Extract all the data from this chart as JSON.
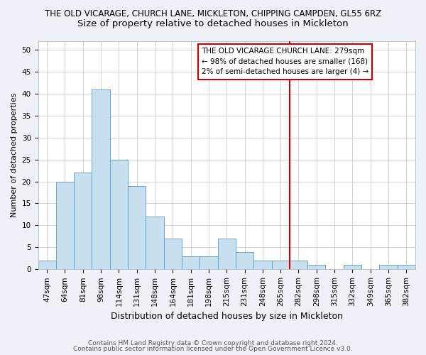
{
  "title": "THE OLD VICARAGE, CHURCH LANE, MICKLETON, CHIPPING CAMPDEN, GL55 6RZ",
  "subtitle": "Size of property relative to detached houses in Mickleton",
  "xlabel": "Distribution of detached houses by size in Mickleton",
  "ylabel": "Number of detached properties",
  "categories": [
    "47sqm",
    "64sqm",
    "81sqm",
    "98sqm",
    "114sqm",
    "131sqm",
    "148sqm",
    "164sqm",
    "181sqm",
    "198sqm",
    "215sqm",
    "231sqm",
    "248sqm",
    "265sqm",
    "282sqm",
    "298sqm",
    "315sqm",
    "332sqm",
    "349sqm",
    "365sqm",
    "382sqm"
  ],
  "values": [
    2,
    20,
    22,
    41,
    25,
    19,
    12,
    7,
    3,
    3,
    7,
    4,
    2,
    2,
    2,
    1,
    0,
    1,
    0,
    1,
    1
  ],
  "bar_color": "#c8dff0",
  "bar_edge_color": "#5599cc",
  "highlight_line_color": "#cc0000",
  "highlight_line_index": 14,
  "annotation_text": "THE OLD VICARAGE CHURCH LANE: 279sqm\n← 98% of detached houses are smaller (168)\n2% of semi-detached houses are larger (4) →",
  "annotation_box_color": "#ffffff",
  "annotation_box_edge": "#cc0000",
  "ylim": [
    0,
    52
  ],
  "yticks": [
    0,
    5,
    10,
    15,
    20,
    25,
    30,
    35,
    40,
    45,
    50
  ],
  "footer1": "Contains HM Land Registry data © Crown copyright and database right 2024.",
  "footer2": "Contains public sector information licensed under the Open Government Licence v3.0.",
  "bg_color": "#eef2f8",
  "plot_bg_color": "#ffffff",
  "title_fontsize": 8.5,
  "subtitle_fontsize": 9.5,
  "xlabel_fontsize": 9,
  "ylabel_fontsize": 8,
  "tick_fontsize": 7.5,
  "ann_fontsize": 7.5,
  "footer_fontsize": 6.5
}
